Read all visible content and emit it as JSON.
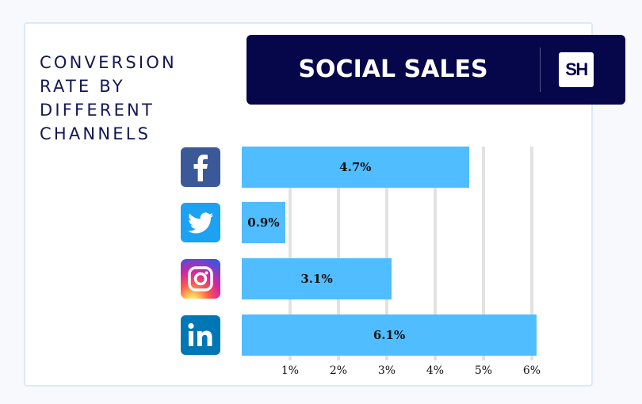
{
  "side_title": [
    "CONVERSION",
    "RATE BY",
    "DIFFERENT",
    "CHANNELS"
  ],
  "banner": {
    "title": "SOCIAL SALES",
    "logo_text": "SH",
    "color": "#06064a"
  },
  "chart_data": {
    "type": "bar",
    "orientation": "horizontal",
    "title": "CONVERSION RATE BY DIFFERENT CHANNELS",
    "categories": [
      "Facebook",
      "Twitter",
      "Instagram",
      "LinkedIn"
    ],
    "values": [
      4.7,
      0.9,
      3.1,
      6.1
    ],
    "value_labels": [
      "4.7%",
      "0.9%",
      "3.1%",
      "6.1%"
    ],
    "x_ticks": [
      1,
      2,
      3,
      4,
      5,
      6
    ],
    "x_tick_labels": [
      "1%",
      "2%",
      "3%",
      "4%",
      "5%",
      "6%"
    ],
    "xlim": [
      0,
      6.5
    ],
    "grid": true,
    "bar_color": "#4fbdff"
  },
  "channels": [
    {
      "icon": "facebook-icon",
      "color": "#3b5998"
    },
    {
      "icon": "twitter-icon",
      "color": "#1da1f2"
    },
    {
      "icon": "instagram-icon",
      "color": "#d6249f"
    },
    {
      "icon": "linkedin-icon",
      "color": "#0077b5"
    }
  ]
}
